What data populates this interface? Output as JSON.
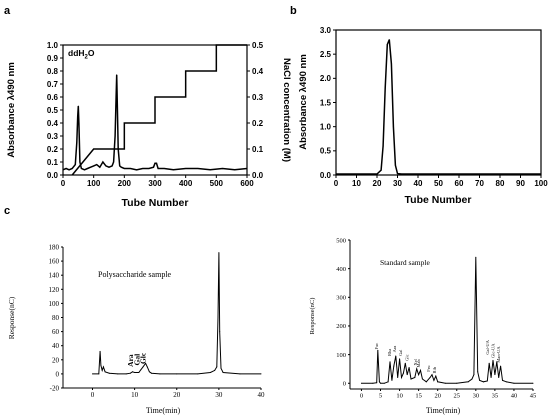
{
  "panel_labels": [
    "a",
    "b",
    "c"
  ],
  "chart_data": [
    {
      "id": "a",
      "type": "line",
      "annotation": "ddH2O",
      "annotation_main": "ddH",
      "annotation_sub": "2",
      "annotation_tail": "O",
      "xlabel": "Tube Number",
      "ylabel": "Absorbance λ490 nm",
      "y2label": "NaCl concentration (M)",
      "xlim": [
        0,
        600
      ],
      "ylim": [
        0,
        1.0
      ],
      "y2lim": [
        0,
        0.5
      ],
      "xticks": [
        "0",
        "100",
        "200",
        "300",
        "400",
        "500",
        "600"
      ],
      "yticks": [
        "0.0",
        "0.1",
        "0.2",
        "0.3",
        "0.4",
        "0.5",
        "0.6",
        "0.7",
        "0.8",
        "0.9",
        "1.0"
      ],
      "y2ticks": [
        "0.0",
        "0.1",
        "0.2",
        "0.3",
        "0.4",
        "0.5"
      ],
      "series": [
        {
          "axis": "left",
          "x": [
            0,
            10,
            20,
            30,
            40,
            45,
            48,
            50,
            52,
            55,
            60,
            70,
            80,
            90,
            100,
            110,
            120,
            130,
            140,
            150,
            160,
            165,
            170,
            173,
            175,
            177,
            180,
            185,
            190,
            200,
            220,
            240,
            260,
            280,
            295,
            300,
            305,
            310,
            330,
            360,
            400,
            440,
            480,
            520,
            560,
            600
          ],
          "y": [
            0.04,
            0.05,
            0.04,
            0.05,
            0.08,
            0.25,
            0.45,
            0.53,
            0.4,
            0.1,
            0.05,
            0.04,
            0.05,
            0.06,
            0.07,
            0.08,
            0.06,
            0.1,
            0.07,
            0.06,
            0.07,
            0.1,
            0.3,
            0.6,
            0.77,
            0.55,
            0.2,
            0.07,
            0.06,
            0.05,
            0.05,
            0.04,
            0.05,
            0.05,
            0.06,
            0.09,
            0.09,
            0.05,
            0.05,
            0.04,
            0.05,
            0.05,
            0.04,
            0.05,
            0.04,
            0.05
          ]
        },
        {
          "axis": "right",
          "step": true,
          "x": [
            0,
            100,
            200,
            300,
            400,
            500,
            600
          ],
          "y": [
            0.0,
            0.1,
            0.2,
            0.3,
            0.4,
            0.5,
            0.5
          ],
          "ramp": [
            [
              0,
              0
            ],
            [
              30,
              0
            ],
            [
              100,
              0.1
            ]
          ]
        }
      ]
    },
    {
      "id": "b",
      "type": "line",
      "xlabel": "Tube Number",
      "ylabel": "Absorbance λ490 nm",
      "xlim": [
        0,
        100
      ],
      "ylim": [
        0,
        3.0
      ],
      "xticks": [
        "0",
        "10",
        "20",
        "30",
        "40",
        "50",
        "60",
        "70",
        "80",
        "90",
        "100"
      ],
      "yticks": [
        "0.0",
        "0.5",
        "1.0",
        "1.5",
        "2.0",
        "2.5",
        "3.0"
      ],
      "series": [
        {
          "x": [
            0,
            10,
            20,
            22,
            23,
            24,
            25,
            26,
            27,
            28,
            29,
            30,
            32,
            40,
            60,
            80,
            100
          ],
          "y": [
            0.02,
            0.02,
            0.02,
            0.1,
            0.6,
            1.8,
            2.7,
            2.8,
            2.3,
            1.0,
            0.2,
            0.03,
            0.02,
            0.02,
            0.02,
            0.02,
            0.02
          ]
        }
      ]
    },
    {
      "id": "c-left",
      "type": "line",
      "title": "Polysaccharide sample",
      "xlabel": "Time(min)",
      "ylabel": "Response(nC)",
      "xlim": [
        0,
        40
      ],
      "ylim": [
        -20,
        180
      ],
      "xticks": [
        "0",
        "10",
        "20",
        "30",
        "40"
      ],
      "yticks": [
        "-20",
        "0",
        "20",
        "40",
        "60",
        "80",
        "100",
        "120",
        "140",
        "160",
        "180"
      ],
      "peak_labels": [
        {
          "text": "Ara",
          "x": 9.6,
          "y": 10
        },
        {
          "text": "Gal",
          "x": 11.2,
          "y": 12
        },
        {
          "text": "Glc",
          "x": 12.6,
          "y": 14
        }
      ],
      "series": [
        {
          "x": [
            0,
            1.5,
            1.8,
            2.0,
            2.3,
            2.6,
            3,
            4,
            6,
            8,
            9,
            9.5,
            10,
            11,
            11.5,
            12,
            12.6,
            13,
            13.5,
            14,
            16,
            20,
            25,
            28,
            29,
            29.5,
            29.8,
            30,
            30.2,
            30.5,
            31,
            35,
            40
          ],
          "y": [
            0,
            0,
            32,
            12,
            5,
            10,
            3,
            1,
            0,
            0,
            1,
            3,
            2,
            2,
            6,
            10,
            15,
            10,
            3,
            1,
            0,
            0,
            0,
            2,
            5,
            10,
            80,
            172,
            60,
            8,
            2,
            0,
            0
          ]
        }
      ]
    },
    {
      "id": "c-right",
      "type": "line",
      "title": "Standard sample",
      "xlabel": "Time(min)",
      "ylabel": "Response(nC)",
      "xlim": [
        -3,
        45
      ],
      "ylim": [
        -20,
        500
      ],
      "xticks": [
        "0",
        "5",
        "10",
        "15",
        "20",
        "25",
        "30",
        "35",
        "40",
        "45"
      ],
      "yticks": [
        "0",
        "100",
        "200",
        "300",
        "400",
        "500"
      ],
      "peak_labels": [
        {
          "text": "Fuc",
          "x": 4.4,
          "y": 118
        },
        {
          "text": "Rha",
          "x": 7.8,
          "y": 95
        },
        {
          "text": "Ara",
          "x": 9.0,
          "y": 108
        },
        {
          "text": "Gal",
          "x": 10.7,
          "y": 95
        },
        {
          "text": "Glc",
          "x": 12.4,
          "y": 78
        },
        {
          "text": "Xyl",
          "x": 14.6,
          "y": 62
        },
        {
          "text": "Man",
          "x": 15.4,
          "y": 55
        },
        {
          "text": "Fru",
          "x": 18.0,
          "y": 40
        },
        {
          "text": "Rib",
          "x": 19.6,
          "y": 34
        },
        {
          "text": "Gal-UA",
          "x": 33.5,
          "y": 100
        },
        {
          "text": "Glc-UA",
          "x": 34.9,
          "y": 88
        },
        {
          "text": "Man-UA",
          "x": 36.4,
          "y": 72
        }
      ],
      "series": [
        {
          "x": [
            0,
            3,
            4,
            4.3,
            4.7,
            5,
            6,
            7,
            7.5,
            8,
            8.5,
            9,
            9.5,
            10,
            10.5,
            11,
            11.5,
            12,
            12.5,
            13,
            14,
            14.5,
            15,
            15.5,
            16,
            17,
            18,
            18.5,
            19,
            19.5,
            20,
            22,
            25,
            28,
            29,
            29.5,
            30,
            30.5,
            31,
            32,
            33,
            33.5,
            34,
            34.5,
            35,
            35.5,
            36,
            36.5,
            37,
            38,
            40,
            45
          ],
          "y": [
            0,
            0,
            2,
            115,
            5,
            0,
            0,
            5,
            75,
            10,
            60,
            95,
            20,
            85,
            20,
            35,
            70,
            30,
            55,
            15,
            20,
            50,
            30,
            45,
            15,
            5,
            20,
            30,
            10,
            25,
            5,
            0,
            0,
            5,
            15,
            30,
            440,
            40,
            10,
            5,
            8,
            70,
            20,
            80,
            30,
            75,
            20,
            60,
            10,
            5,
            0,
            0
          ]
        }
      ]
    }
  ]
}
